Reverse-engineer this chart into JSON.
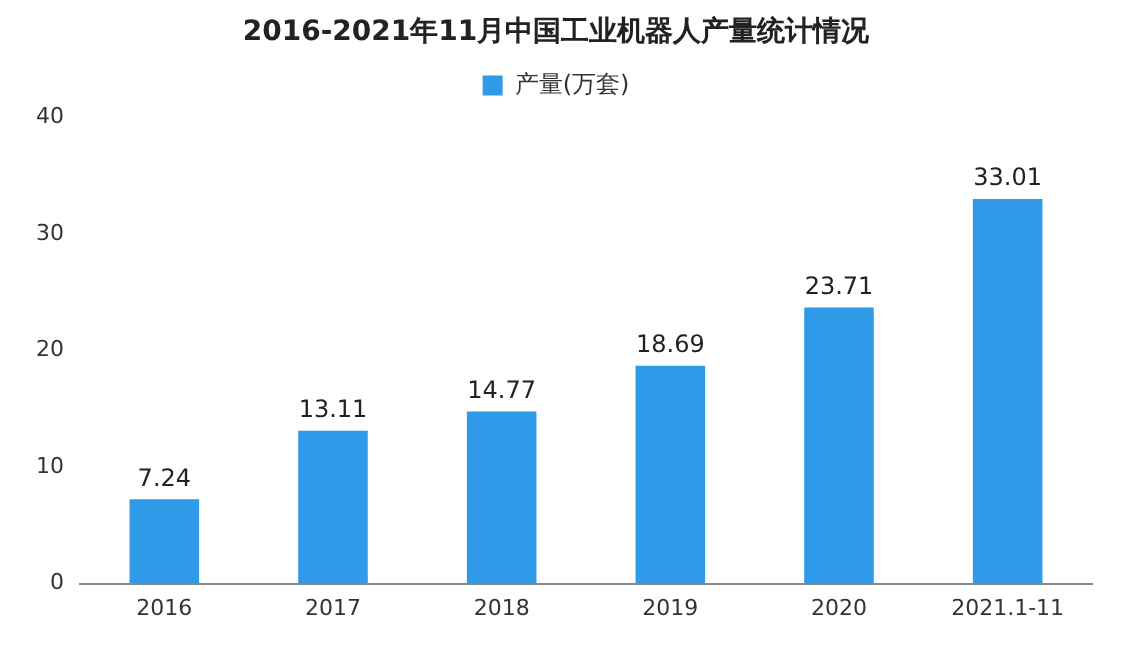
{
  "chart_data": {
    "type": "bar",
    "title": "2016-2021年11月中国工业机器人产量统计情况",
    "categories": [
      "2016",
      "2017",
      "2018",
      "2019",
      "2020",
      "2021.1-11"
    ],
    "series": [
      {
        "name": "产量(万套)",
        "color": "#2f9be8",
        "values": [
          7.24,
          13.11,
          14.77,
          18.69,
          23.71,
          33.01
        ]
      }
    ],
    "ylim": [
      0,
      40
    ],
    "yticks": [
      0,
      10,
      20,
      30,
      40
    ],
    "grid": false,
    "legend": "top",
    "data_labels": true
  }
}
